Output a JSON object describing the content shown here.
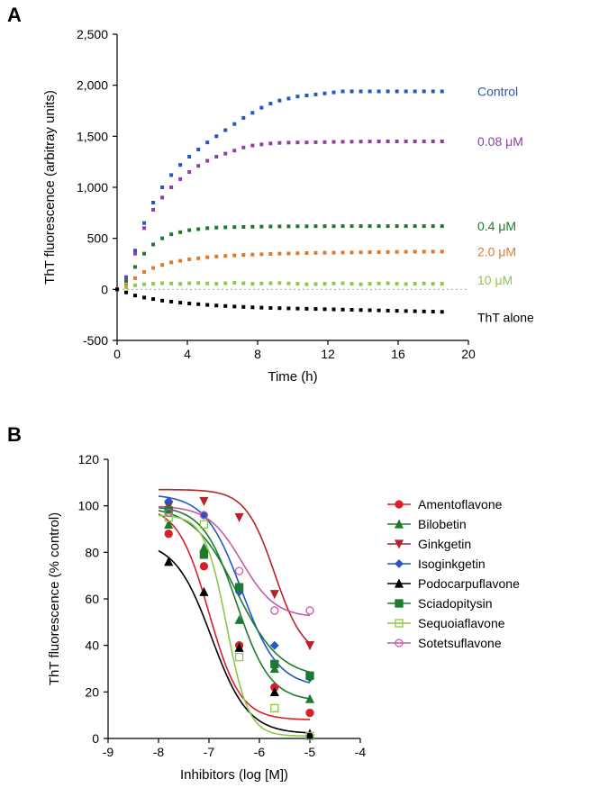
{
  "panelA": {
    "label": "A",
    "label_fontsize": 22,
    "xlabel": "Time (h)",
    "ylabel": "ThT fluorescence (arbitray units)",
    "label_fontsize_axes": 15,
    "tick_fontsize": 14,
    "background_color": "#ffffff",
    "xlim": [
      0,
      20
    ],
    "xtick_step": 4,
    "ylim": [
      -500,
      2500
    ],
    "ytick_step": 500,
    "series": [
      {
        "label": "Control",
        "color": "#2457c5",
        "marker": "square",
        "y": [
          0,
          120,
          380,
          650,
          850,
          1000,
          1120,
          1220,
          1300,
          1370,
          1440,
          1500,
          1560,
          1620,
          1680,
          1730,
          1780,
          1820,
          1850,
          1870,
          1890,
          1900,
          1910,
          1920,
          1930,
          1940,
          1940,
          1940,
          1940,
          1940,
          1940,
          1940,
          1940,
          1940,
          1940,
          1940,
          1940
        ]
      },
      {
        "label": "0.08 μM",
        "color": "#8e3fa0",
        "marker": "square",
        "y": [
          0,
          110,
          350,
          600,
          780,
          900,
          1000,
          1080,
          1150,
          1210,
          1260,
          1300,
          1330,
          1360,
          1390,
          1410,
          1420,
          1430,
          1435,
          1438,
          1440,
          1440,
          1442,
          1443,
          1445,
          1446,
          1447,
          1448,
          1449,
          1450,
          1450,
          1450,
          1450,
          1450,
          1450,
          1450,
          1450
        ]
      },
      {
        "label": "0.4 μM",
        "color": "#1d7a2e",
        "marker": "square",
        "y": [
          0,
          80,
          220,
          350,
          440,
          500,
          540,
          560,
          580,
          590,
          600,
          605,
          608,
          610,
          612,
          614,
          615,
          616,
          617,
          618,
          618,
          618,
          619,
          619,
          619,
          620,
          620,
          620,
          620,
          620,
          620,
          620,
          620,
          620,
          620,
          620,
          620
        ]
      },
      {
        "label": "2.0 μM",
        "color": "#e0782a",
        "marker": "square",
        "y": [
          0,
          40,
          110,
          170,
          210,
          240,
          265,
          280,
          295,
          305,
          315,
          322,
          328,
          333,
          337,
          341,
          344,
          347,
          350,
          352,
          354,
          356,
          358,
          359,
          360,
          361,
          362,
          363,
          364,
          365,
          366,
          367,
          368,
          369,
          370,
          370,
          370
        ]
      },
      {
        "label": "10 μM",
        "color": "#8cc94a",
        "marker": "square",
        "y": [
          0,
          20,
          40,
          50,
          55,
          60,
          58,
          55,
          60,
          62,
          58,
          55,
          60,
          65,
          60,
          55,
          58,
          60,
          62,
          58,
          55,
          50,
          52,
          55,
          58,
          60,
          55,
          50,
          55,
          58,
          60,
          55,
          52,
          55,
          58,
          55,
          55
        ]
      },
      {
        "label": "ThT alone",
        "color": "#000000",
        "marker": "square",
        "y": [
          0,
          -30,
          -60,
          -80,
          -95,
          -110,
          -120,
          -130,
          -138,
          -145,
          -152,
          -158,
          -163,
          -168,
          -172,
          -176,
          -179,
          -182,
          -184,
          -186,
          -188,
          -190,
          -192,
          -194,
          -196,
          -198,
          -200,
          -202,
          -204,
          -206,
          -208,
          -210,
          -212,
          -214,
          -216,
          -218,
          -220
        ]
      }
    ],
    "n_points": 37,
    "x_start": 0,
    "x_end": 18.5,
    "baseline_y": 0
  },
  "panelB": {
    "label": "B",
    "label_fontsize": 22,
    "xlabel": "Inhibitors (log [M])",
    "ylabel": "ThT fluorescence (% control)",
    "label_fontsize_axes": 15,
    "tick_fontsize": 14,
    "background_color": "#ffffff",
    "xlim": [
      -9,
      -4
    ],
    "xtick_step": 1,
    "ylim": [
      0,
      120
    ],
    "ytick_step": 20,
    "x_points": [
      -7.8,
      -7.1,
      -6.4,
      -5.7,
      -5.0
    ],
    "series": [
      {
        "label": "Amentoflavone",
        "color": "#d6202a",
        "marker": "circle",
        "filled": true,
        "y": [
          88,
          74,
          40,
          22,
          11
        ],
        "c50": -7.0,
        "hill": 1.4,
        "top": 100,
        "bot": 8
      },
      {
        "label": "Bilobetin",
        "color": "#1d7a2e",
        "marker": "triangle",
        "filled": true,
        "y": [
          92,
          82,
          51,
          30,
          17
        ],
        "c50": -6.45,
        "hill": 1.3,
        "top": 100,
        "bot": 16
      },
      {
        "label": "Ginkgetin",
        "color": "#b5232a",
        "marker": "triangle-down",
        "filled": true,
        "y": [
          100,
          102,
          95,
          62,
          40
        ],
        "c50": -5.7,
        "hill": 1.5,
        "top": 107,
        "bot": 35
      },
      {
        "label": "Isoginkgetin",
        "color": "#2457c5",
        "marker": "diamond",
        "filled": true,
        "y": [
          102,
          96,
          63,
          40,
          26
        ],
        "c50": -6.35,
        "hill": 1.2,
        "top": 105,
        "bot": 22
      },
      {
        "label": "Podocarpuflavone",
        "color": "#000000",
        "marker": "triangle",
        "filled": true,
        "y": [
          76,
          63,
          39,
          20,
          2
        ],
        "c50": -6.95,
        "hill": 1.2,
        "top": 85,
        "bot": 2
      },
      {
        "label": "Sciadopitysin",
        "color": "#1d7a2e",
        "marker": "square",
        "filled": true,
        "y": [
          98,
          79,
          65,
          32,
          27
        ],
        "c50": -6.45,
        "hill": 1.0,
        "top": 100,
        "bot": 26
      },
      {
        "label": "Sequoiaflavone",
        "color": "#8cc94a",
        "marker": "square",
        "filled": false,
        "y": [
          95,
          92,
          35,
          13,
          1
        ],
        "c50": -6.65,
        "hill": 2.0,
        "top": 96,
        "bot": 1
      },
      {
        "label": "Sotetsuflavone",
        "color": "#c45aa7",
        "marker": "circle",
        "filled": false,
        "y": [
          97,
          96,
          72,
          55,
          55
        ],
        "c50": -6.35,
        "hill": 1.3,
        "top": 100,
        "bot": 52
      }
    ]
  }
}
